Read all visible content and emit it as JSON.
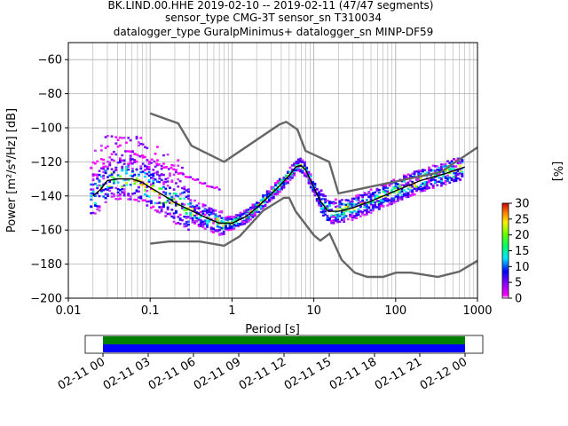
{
  "header": {
    "title_line1": "BK.LIND.00.HHE   2019-02-10 -- 2019-02-11  (47/47 segments)",
    "title_line2": "sensor_type CMG-3T sensor_sn T310034",
    "title_line3": "datalogger_type GuralpMinimus+ datalogger_sn MINP-DF59"
  },
  "chart_data": {
    "type": "heatmap",
    "xlabel": "Period [s]",
    "ylabel": "Power [m²/s⁴/Hz] [dB]",
    "x_scale": "log",
    "xlim": [
      0.01,
      1000
    ],
    "ylim": [
      -200,
      -50
    ],
    "x_ticks": [
      {
        "value": 0.01,
        "label": "0.01"
      },
      {
        "value": 0.1,
        "label": "0.1"
      },
      {
        "value": 1,
        "label": "1"
      },
      {
        "value": 10,
        "label": "10"
      },
      {
        "value": 100,
        "label": "100"
      },
      {
        "value": 1000,
        "label": "1000"
      }
    ],
    "y_ticks": [
      {
        "value": -60,
        "label": "−60"
      },
      {
        "value": -80,
        "label": "−80"
      },
      {
        "value": -100,
        "label": "−100"
      },
      {
        "value": -120,
        "label": "−120"
      },
      {
        "value": -140,
        "label": "−140"
      },
      {
        "value": -160,
        "label": "−160"
      },
      {
        "value": -180,
        "label": "−180"
      },
      {
        "value": -200,
        "label": "−200"
      }
    ],
    "grid": true,
    "colorbar": {
      "label": "[%]",
      "range": [
        0,
        30
      ],
      "ticks": [
        {
          "value": 0,
          "label": "0"
        },
        {
          "value": 5,
          "label": "5"
        },
        {
          "value": 10,
          "label": "10"
        },
        {
          "value": 15,
          "label": "15"
        },
        {
          "value": 20,
          "label": "20"
        },
        {
          "value": 25,
          "label": "25"
        },
        {
          "value": 30,
          "label": "30"
        }
      ]
    },
    "nhnm": [
      [
        0.1,
        -91.5
      ],
      [
        0.22,
        -97.4
      ],
      [
        0.32,
        -110.5
      ],
      [
        0.8,
        -120.0
      ],
      [
        3.8,
        -98.0
      ],
      [
        4.6,
        -96.5
      ],
      [
        6.3,
        -101.0
      ],
      [
        7.9,
        -113.5
      ],
      [
        15.4,
        -120.0
      ],
      [
        20.0,
        -138.5
      ],
      [
        354.8,
        -126.0
      ],
      [
        1000,
        -111.5
      ]
    ],
    "nlnm": [
      [
        0.1,
        -168.0
      ],
      [
        0.17,
        -166.7
      ],
      [
        0.4,
        -166.7
      ],
      [
        0.8,
        -169.2
      ],
      [
        1.24,
        -163.7
      ],
      [
        2.4,
        -148.6
      ],
      [
        4.3,
        -141.1
      ],
      [
        5.0,
        -141.1
      ],
      [
        6.0,
        -149.0
      ],
      [
        10.0,
        -163.0
      ],
      [
        12.0,
        -166.2
      ],
      [
        15.6,
        -162.1
      ],
      [
        21.9,
        -177.5
      ],
      [
        31.6,
        -185.0
      ],
      [
        45.0,
        -187.5
      ],
      [
        70.0,
        -187.5
      ],
      [
        101.0,
        -185.0
      ],
      [
        154.0,
        -185.0
      ],
      [
        328.0,
        -187.5
      ],
      [
        600.0,
        -184.4
      ],
      [
        1000,
        -178.0
      ]
    ],
    "mode_curve": [
      [
        0.02,
        -140.0
      ],
      [
        0.025,
        -136.0
      ],
      [
        0.03,
        -131.0
      ],
      [
        0.04,
        -130.0
      ],
      [
        0.06,
        -130.0
      ],
      [
        0.08,
        -132.0
      ],
      [
        0.1,
        -135.0
      ],
      [
        0.15,
        -140.0
      ],
      [
        0.2,
        -144.0
      ],
      [
        0.3,
        -148.0
      ],
      [
        0.5,
        -153.0
      ],
      [
        0.7,
        -156.0
      ],
      [
        1.0,
        -156.0
      ],
      [
        1.5,
        -152.0
      ],
      [
        2.0,
        -147.0
      ],
      [
        3.0,
        -139.0
      ],
      [
        4.0,
        -133.0
      ],
      [
        5.0,
        -128.0
      ],
      [
        6.0,
        -123.0
      ],
      [
        7.0,
        -122.0
      ],
      [
        8.0,
        -125.0
      ],
      [
        10.0,
        -135.0
      ],
      [
        12.0,
        -143.0
      ],
      [
        15.0,
        -149.0
      ],
      [
        20.0,
        -149.0
      ],
      [
        30.0,
        -147.0
      ],
      [
        50.0,
        -143.0
      ],
      [
        100.0,
        -137.0
      ],
      [
        200.0,
        -131.0
      ],
      [
        400.0,
        -127.0
      ],
      [
        700.0,
        -123.0
      ]
    ],
    "density_segments": [
      {
        "spread": 4,
        "offsets": [
          [
            0,
            -8
          ],
          [
            0,
            -14
          ],
          [
            0,
            -22
          ]
        ]
      }
    ]
  },
  "timeline": {
    "ticks": [
      {
        "label": "02-11 00"
      },
      {
        "label": "02-11 03"
      },
      {
        "label": "02-11 06"
      },
      {
        "label": "02-11 09"
      },
      {
        "label": "02-11 12"
      },
      {
        "label": "02-11 15"
      },
      {
        "label": "02-11 18"
      },
      {
        "label": "02-11 21"
      },
      {
        "label": "02-12 00"
      }
    ],
    "colors": {
      "top": "#008000",
      "bottom": "#0000ff"
    }
  }
}
